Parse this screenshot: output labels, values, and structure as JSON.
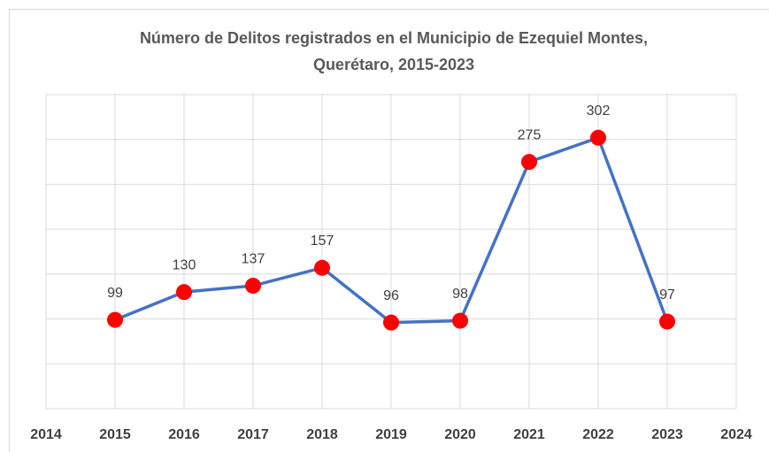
{
  "chart_data": {
    "type": "scatter",
    "title": [
      "Número de Delitos registrados en el Municipio de Ezequiel Montes,",
      "Querétaro, 2015-2023"
    ],
    "x": [
      2015,
      2016,
      2017,
      2018,
      2019,
      2020,
      2021,
      2022,
      2023
    ],
    "series": [
      {
        "color": "#4472c4",
        "marker_color": "#ff0000",
        "values": [
          99,
          130,
          137,
          157,
          96,
          98,
          275,
          302,
          97
        ]
      }
    ],
    "xlim": [
      2014,
      2024
    ],
    "xticks": [
      2014,
      2015,
      2016,
      2017,
      2018,
      2019,
      2020,
      2021,
      2022,
      2023,
      2024
    ],
    "ylim": [
      0,
      350
    ],
    "yticks": [
      0,
      50,
      100,
      150,
      200,
      250,
      300,
      350
    ],
    "grid": true
  }
}
